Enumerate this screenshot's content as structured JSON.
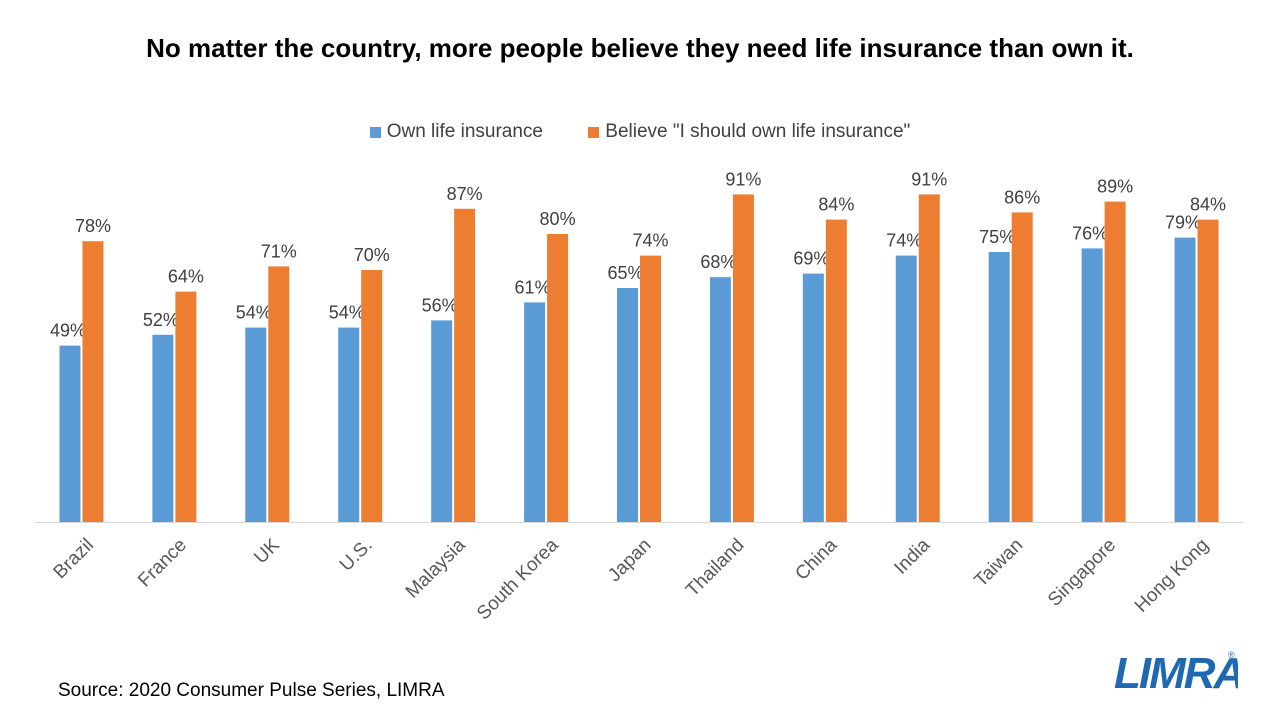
{
  "title": "No matter the country, more people believe they need life insurance than own it.",
  "source": "Source: 2020 Consumer Pulse Series, LIMRA",
  "logo": {
    "text": "LIMRA",
    "reg": "®",
    "color": "#1f69b3"
  },
  "chart_data": {
    "type": "bar",
    "categories": [
      "Brazil",
      "France",
      "UK",
      "U.S.",
      "Malaysia",
      "South Korea",
      "Japan",
      "Thailand",
      "China",
      "India",
      "Taiwan",
      "Singapore",
      "Hong Kong"
    ],
    "series": [
      {
        "name": "Own life insurance",
        "color": "#5b9bd5",
        "values": [
          49,
          52,
          54,
          54,
          56,
          61,
          65,
          68,
          69,
          74,
          75,
          76,
          79
        ],
        "labels": [
          "49%",
          "52%",
          "54%",
          "54%",
          "56%",
          "61%",
          "65%",
          "68%",
          "69%",
          "74%",
          "75%",
          "76%",
          "79%"
        ]
      },
      {
        "name": "Believe \"I should own life insurance\"",
        "color": "#ed7d31",
        "values": [
          78,
          64,
          71,
          70,
          87,
          80,
          74,
          91,
          84,
          91,
          86,
          89,
          84
        ],
        "labels": [
          "78%",
          "64%",
          "71%",
          "70%",
          "87%",
          "80%",
          "74%",
          "91%",
          "84%",
          "91%",
          "86%",
          "89%",
          "84%"
        ]
      }
    ],
    "ylim": [
      0,
      100
    ],
    "grid": false,
    "legend_position": "top"
  }
}
